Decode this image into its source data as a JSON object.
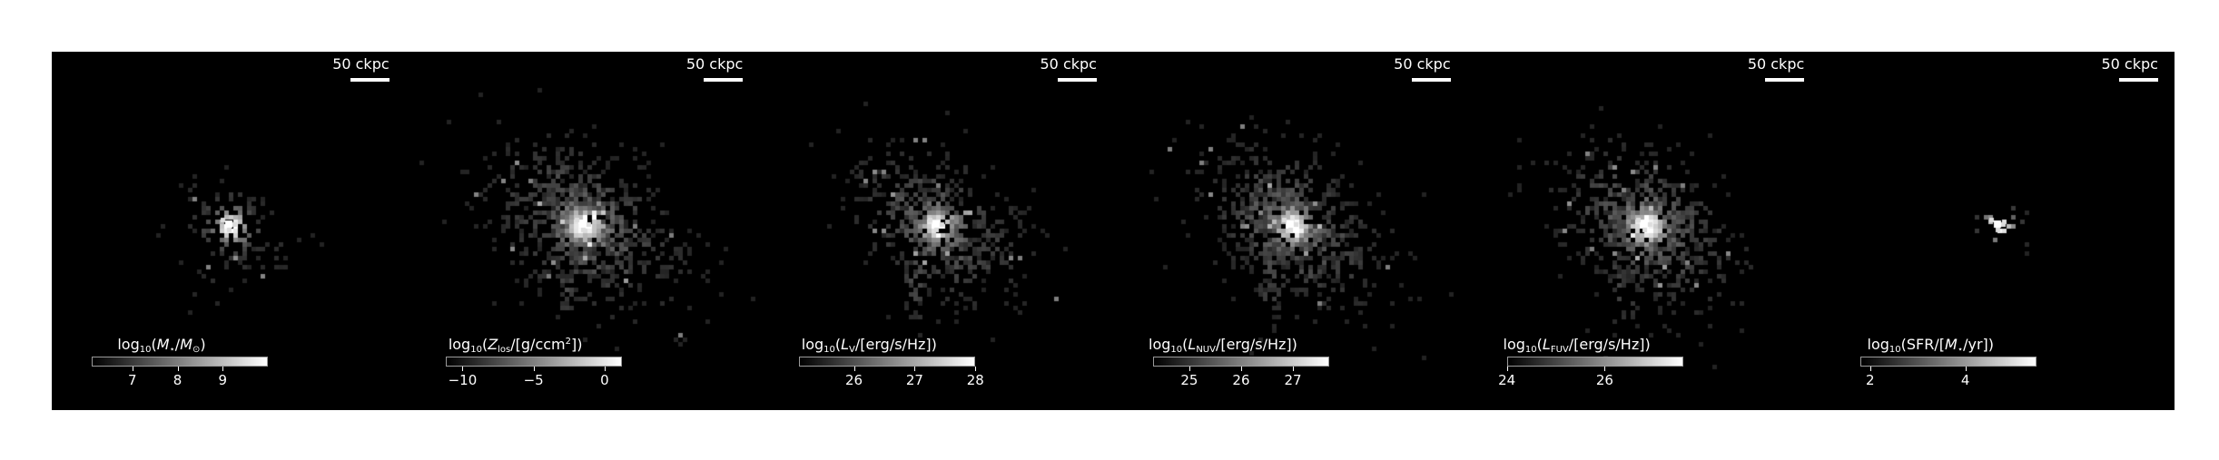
{
  "scale_bar_label": "50 ckpc",
  "panels": [
    {
      "label_parts": [
        [
          "t",
          "log"
        ],
        [
          "sub",
          "10"
        ],
        [
          "t",
          "("
        ],
        [
          "i",
          "M"
        ],
        [
          "sub",
          "⋆"
        ],
        [
          "t",
          "/"
        ],
        [
          "i",
          "M"
        ],
        [
          "sub",
          "⊙"
        ],
        [
          "t",
          ")"
        ]
      ],
      "cbar_min": 6.1,
      "cbar_max": 10.0,
      "ticks": [
        {
          "label": "7",
          "value": 7
        },
        {
          "label": "8",
          "value": 8
        },
        {
          "label": "9",
          "value": 9
        }
      ],
      "morph": {
        "spread": 0.55,
        "density": 0.55,
        "core": 1.0,
        "tail": 0.25
      }
    },
    {
      "label_parts": [
        [
          "t",
          "log"
        ],
        [
          "sub",
          "10"
        ],
        [
          "t",
          "("
        ],
        [
          "i",
          "Z"
        ],
        [
          "sub",
          "los"
        ],
        [
          "t",
          "/[g/ccm"
        ],
        [
          "sup",
          "2"
        ],
        [
          "t",
          "])"
        ]
      ],
      "cbar_min": -11.2,
      "cbar_max": 1.2,
      "ticks": [
        {
          "label": "−10",
          "value": -10
        },
        {
          "label": "−5",
          "value": -5
        },
        {
          "label": "0",
          "value": 0
        }
      ],
      "morph": {
        "spread": 1.0,
        "density": 0.95,
        "core": 0.9,
        "tail": 1.0
      }
    },
    {
      "label_parts": [
        [
          "t",
          "log"
        ],
        [
          "sub",
          "10"
        ],
        [
          "t",
          "("
        ],
        [
          "i",
          "L"
        ],
        [
          "sub",
          "V"
        ],
        [
          "t",
          "/[erg/s/Hz])"
        ]
      ],
      "cbar_min": 25.1,
      "cbar_max": 28.0,
      "ticks": [
        {
          "label": "26",
          "value": 26
        },
        {
          "label": "27",
          "value": 27
        },
        {
          "label": "28",
          "value": 28
        }
      ],
      "morph": {
        "spread": 0.9,
        "density": 0.85,
        "core": 0.95,
        "tail": 0.85
      }
    },
    {
      "label_parts": [
        [
          "t",
          "log"
        ],
        [
          "sub",
          "10"
        ],
        [
          "t",
          "("
        ],
        [
          "i",
          "L"
        ],
        [
          "sub",
          "NUV"
        ],
        [
          "t",
          "/[erg/s/Hz])"
        ]
      ],
      "cbar_min": 24.3,
      "cbar_max": 27.7,
      "ticks": [
        {
          "label": "25",
          "value": 25
        },
        {
          "label": "26",
          "value": 26
        },
        {
          "label": "27",
          "value": 27
        }
      ],
      "morph": {
        "spread": 0.95,
        "density": 0.9,
        "core": 0.95,
        "tail": 0.9
      }
    },
    {
      "label_parts": [
        [
          "t",
          "log"
        ],
        [
          "sub",
          "10"
        ],
        [
          "t",
          "("
        ],
        [
          "i",
          "L"
        ],
        [
          "sub",
          "FUV"
        ],
        [
          "t",
          "/[erg/s/Hz])"
        ]
      ],
      "cbar_min": 24.0,
      "cbar_max": 27.6,
      "ticks": [
        {
          "label": "24",
          "value": 24
        },
        {
          "label": "26",
          "value": 26
        }
      ],
      "morph": {
        "spread": 0.95,
        "density": 0.95,
        "core": 0.95,
        "tail": 0.95
      }
    },
    {
      "label_parts": [
        [
          "t",
          "log"
        ],
        [
          "sub",
          "10"
        ],
        [
          "t",
          "(SFR/["
        ],
        [
          "i",
          "M"
        ],
        [
          "sub",
          "⋆"
        ],
        [
          "t",
          "/yr])"
        ]
      ],
      "cbar_min": 1.8,
      "cbar_max": 5.5,
      "ticks": [
        {
          "label": "2",
          "value": 2
        },
        {
          "label": "4",
          "value": 4
        }
      ],
      "morph": {
        "spread": 0.22,
        "density": 0.35,
        "core": 1.0,
        "tail": 0.0
      }
    }
  ]
}
